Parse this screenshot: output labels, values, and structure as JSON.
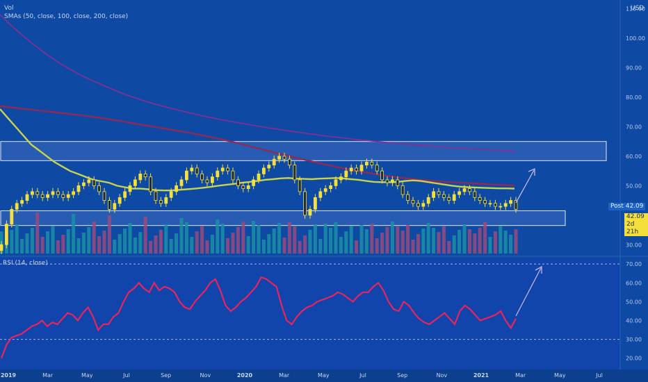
{
  "legend": {
    "vol": "Vol",
    "sma": "SMAs (50, close, 100, close, 200, close)",
    "rsi": "RSI (14, close)"
  },
  "currency": "USD",
  "price_tags": {
    "post_label": "Post",
    "post_value": "42.09",
    "last_value": "42.09",
    "countdown": "2d 21h"
  },
  "colors": {
    "background": "#0e4aa4",
    "up": "#f5e03b",
    "down": "#f5e03b",
    "vol_up": "#1b8fa6",
    "vol_down": "#9a4a7b",
    "sma50": "#c8d44f",
    "sma100": "#8e2a55",
    "sma200": "#8a2d93",
    "rsi": "#e8245e",
    "zone_border": "#e6e6f5",
    "arrow": "#c3b6e8"
  },
  "chart_data": [
    {
      "type": "candlestick",
      "title": "",
      "x_ticks": [
        "2019",
        "Mar",
        "May",
        "Jul",
        "Sep",
        "Nov",
        "2020",
        "Mar",
        "May",
        "Jul",
        "Sep",
        "Nov",
        "2021",
        "Mar",
        "May",
        "Jul"
      ],
      "y_ticks": [
        30,
        40,
        50,
        60,
        70,
        80,
        90,
        100,
        110
      ],
      "y_tick_labels": [
        "30.00",
        "40.00",
        "50.00",
        "60.00",
        "70.00",
        "80.00",
        "90.00",
        "100.00",
        "110.00"
      ],
      "ylim": [
        27,
        113
      ],
      "x_range": [
        "2019-01",
        "2021-07"
      ],
      "close": [
        30,
        37,
        42,
        44,
        45,
        47,
        48,
        47,
        46,
        47,
        48,
        47,
        46,
        47,
        48,
        50,
        51,
        52,
        50,
        48,
        45,
        42,
        44,
        46,
        48,
        50,
        52,
        54,
        53,
        48,
        45,
        44,
        46,
        48,
        50,
        52,
        55,
        56,
        54,
        52,
        51,
        53,
        55,
        56,
        55,
        52,
        50,
        49,
        50,
        52,
        54,
        56,
        57,
        59,
        60,
        59,
        57,
        52,
        48,
        40,
        42,
        46,
        48,
        49,
        50,
        52,
        53,
        55,
        56,
        55,
        57,
        58,
        57,
        55,
        52,
        51,
        52,
        50,
        47,
        45,
        44,
        43,
        44,
        46,
        48,
        47,
        46,
        45,
        47,
        48,
        49,
        48,
        46,
        45,
        44,
        44,
        43,
        43,
        44,
        45,
        42
      ],
      "sma50": [
        76,
        73,
        70,
        67,
        64,
        62,
        60,
        58,
        56.5,
        55,
        54,
        53,
        52,
        51.5,
        51,
        50,
        49.5,
        49,
        49,
        48.8,
        48.5,
        48.4,
        48.4,
        48.6,
        48.8,
        49,
        49.3,
        49.6,
        50,
        50.3,
        50.6,
        51,
        51.3,
        51.6,
        52,
        52.2,
        52.5,
        52.6,
        52.4,
        52.3,
        52.2,
        52.4,
        52.5,
        52.6,
        52.5,
        52.2,
        52,
        51.6,
        51.3,
        51.2,
        51.2,
        51.3,
        51.6,
        51.8,
        51.6,
        51.2,
        50.8,
        50.4,
        50,
        49.7,
        49.5,
        49.4,
        49.3,
        49.2,
        49.1,
        49.1,
        49
      ],
      "sma100": [
        77,
        76.6,
        76.2,
        75.8,
        75.4,
        75,
        74.6,
        74.2,
        73.8,
        73.3,
        72.8,
        72.2,
        71.6,
        71,
        70.4,
        69.8,
        69.2,
        68.6,
        68,
        67.3,
        66.6,
        65.8,
        65,
        64.1,
        63.2,
        62.3,
        61.4,
        60.5,
        59.6,
        58.8,
        58,
        57.2,
        56.4,
        55.7,
        55,
        54.4,
        53.8,
        53.3,
        52.8,
        52.4,
        52,
        51.7,
        51.4,
        51.2,
        51,
        50.8,
        50.6,
        50.4,
        50.2,
        50
      ],
      "sma200": [
        108,
        103,
        98.5,
        94.5,
        91,
        88,
        85.5,
        83.2,
        81,
        79.2,
        77.6,
        76.2,
        74.9,
        73.7,
        72.6,
        71.6,
        70.7,
        69.8,
        69,
        68.2,
        67.5,
        66.8,
        66.2,
        65.6,
        65.1,
        64.6,
        64.1,
        63.7,
        63.3,
        62.9,
        62.6,
        62.3,
        62,
        61.6
      ],
      "zones": [
        [
          58.5,
          65.0
        ],
        [
          36.5,
          41.5
        ]
      ]
    },
    {
      "type": "line",
      "title": "",
      "series_name": "RSI (14, close)",
      "y_ticks": [
        20,
        30,
        40,
        50,
        60,
        70
      ],
      "y_tick_labels": [
        "20.00",
        "30.00",
        "40.00",
        "50.00",
        "60.00",
        "70.00"
      ],
      "ylim": [
        14,
        73
      ],
      "bands": [
        30,
        70
      ],
      "values": [
        20,
        27,
        31,
        32,
        33,
        35,
        37,
        38,
        40,
        37,
        39,
        38,
        41,
        44,
        43,
        40,
        44,
        47,
        42,
        35,
        38,
        38,
        42,
        44,
        50,
        55,
        57,
        60,
        57,
        55,
        60,
        56,
        58,
        57,
        55,
        50,
        47,
        46,
        50,
        53,
        56,
        60,
        62,
        56,
        48,
        45,
        47,
        50,
        52,
        55,
        58,
        63,
        62,
        60,
        58,
        48,
        40,
        38,
        42,
        45,
        47,
        48,
        50,
        51,
        52,
        53,
        55,
        54,
        52,
        50,
        53,
        55,
        55,
        58,
        60,
        56,
        50,
        46,
        45,
        50,
        48,
        44,
        41,
        39,
        38,
        40,
        42,
        44,
        41,
        38,
        45,
        48,
        46,
        43,
        40,
        41,
        42,
        43,
        45,
        40,
        36,
        41
      ]
    }
  ]
}
